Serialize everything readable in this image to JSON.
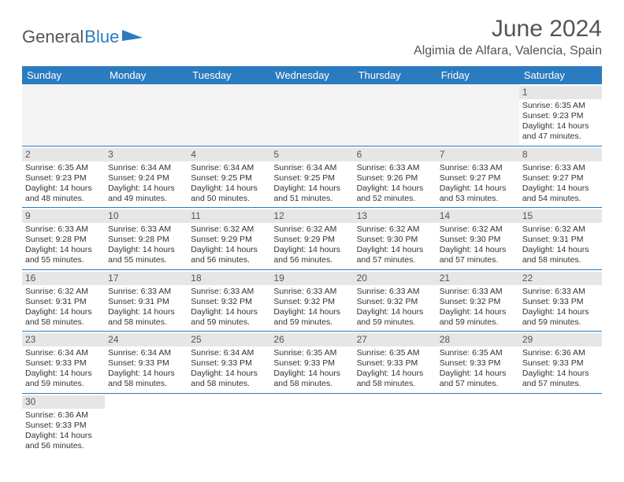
{
  "brand": {
    "part1": "General",
    "part2": "Blue"
  },
  "title": "June 2024",
  "location": "Algimia de Alfara, Valencia, Spain",
  "colors": {
    "header_bg": "#2b7bbf",
    "header_text": "#ffffff",
    "daynum_bg": "#e6e6e6",
    "row_border": "#2b7bbf",
    "text": "#333333",
    "title": "#555555"
  },
  "weekdays": [
    "Sunday",
    "Monday",
    "Tuesday",
    "Wednesday",
    "Thursday",
    "Friday",
    "Saturday"
  ],
  "weeks": [
    [
      null,
      null,
      null,
      null,
      null,
      null,
      {
        "n": "1",
        "sr": "Sunrise: 6:35 AM",
        "ss": "Sunset: 9:23 PM",
        "d1": "Daylight: 14 hours",
        "d2": "and 47 minutes."
      }
    ],
    [
      {
        "n": "2",
        "sr": "Sunrise: 6:35 AM",
        "ss": "Sunset: 9:23 PM",
        "d1": "Daylight: 14 hours",
        "d2": "and 48 minutes."
      },
      {
        "n": "3",
        "sr": "Sunrise: 6:34 AM",
        "ss": "Sunset: 9:24 PM",
        "d1": "Daylight: 14 hours",
        "d2": "and 49 minutes."
      },
      {
        "n": "4",
        "sr": "Sunrise: 6:34 AM",
        "ss": "Sunset: 9:25 PM",
        "d1": "Daylight: 14 hours",
        "d2": "and 50 minutes."
      },
      {
        "n": "5",
        "sr": "Sunrise: 6:34 AM",
        "ss": "Sunset: 9:25 PM",
        "d1": "Daylight: 14 hours",
        "d2": "and 51 minutes."
      },
      {
        "n": "6",
        "sr": "Sunrise: 6:33 AM",
        "ss": "Sunset: 9:26 PM",
        "d1": "Daylight: 14 hours",
        "d2": "and 52 minutes."
      },
      {
        "n": "7",
        "sr": "Sunrise: 6:33 AM",
        "ss": "Sunset: 9:27 PM",
        "d1": "Daylight: 14 hours",
        "d2": "and 53 minutes."
      },
      {
        "n": "8",
        "sr": "Sunrise: 6:33 AM",
        "ss": "Sunset: 9:27 PM",
        "d1": "Daylight: 14 hours",
        "d2": "and 54 minutes."
      }
    ],
    [
      {
        "n": "9",
        "sr": "Sunrise: 6:33 AM",
        "ss": "Sunset: 9:28 PM",
        "d1": "Daylight: 14 hours",
        "d2": "and 55 minutes."
      },
      {
        "n": "10",
        "sr": "Sunrise: 6:33 AM",
        "ss": "Sunset: 9:28 PM",
        "d1": "Daylight: 14 hours",
        "d2": "and 55 minutes."
      },
      {
        "n": "11",
        "sr": "Sunrise: 6:32 AM",
        "ss": "Sunset: 9:29 PM",
        "d1": "Daylight: 14 hours",
        "d2": "and 56 minutes."
      },
      {
        "n": "12",
        "sr": "Sunrise: 6:32 AM",
        "ss": "Sunset: 9:29 PM",
        "d1": "Daylight: 14 hours",
        "d2": "and 56 minutes."
      },
      {
        "n": "13",
        "sr": "Sunrise: 6:32 AM",
        "ss": "Sunset: 9:30 PM",
        "d1": "Daylight: 14 hours",
        "d2": "and 57 minutes."
      },
      {
        "n": "14",
        "sr": "Sunrise: 6:32 AM",
        "ss": "Sunset: 9:30 PM",
        "d1": "Daylight: 14 hours",
        "d2": "and 57 minutes."
      },
      {
        "n": "15",
        "sr": "Sunrise: 6:32 AM",
        "ss": "Sunset: 9:31 PM",
        "d1": "Daylight: 14 hours",
        "d2": "and 58 minutes."
      }
    ],
    [
      {
        "n": "16",
        "sr": "Sunrise: 6:32 AM",
        "ss": "Sunset: 9:31 PM",
        "d1": "Daylight: 14 hours",
        "d2": "and 58 minutes."
      },
      {
        "n": "17",
        "sr": "Sunrise: 6:33 AM",
        "ss": "Sunset: 9:31 PM",
        "d1": "Daylight: 14 hours",
        "d2": "and 58 minutes."
      },
      {
        "n": "18",
        "sr": "Sunrise: 6:33 AM",
        "ss": "Sunset: 9:32 PM",
        "d1": "Daylight: 14 hours",
        "d2": "and 59 minutes."
      },
      {
        "n": "19",
        "sr": "Sunrise: 6:33 AM",
        "ss": "Sunset: 9:32 PM",
        "d1": "Daylight: 14 hours",
        "d2": "and 59 minutes."
      },
      {
        "n": "20",
        "sr": "Sunrise: 6:33 AM",
        "ss": "Sunset: 9:32 PM",
        "d1": "Daylight: 14 hours",
        "d2": "and 59 minutes."
      },
      {
        "n": "21",
        "sr": "Sunrise: 6:33 AM",
        "ss": "Sunset: 9:32 PM",
        "d1": "Daylight: 14 hours",
        "d2": "and 59 minutes."
      },
      {
        "n": "22",
        "sr": "Sunrise: 6:33 AM",
        "ss": "Sunset: 9:33 PM",
        "d1": "Daylight: 14 hours",
        "d2": "and 59 minutes."
      }
    ],
    [
      {
        "n": "23",
        "sr": "Sunrise: 6:34 AM",
        "ss": "Sunset: 9:33 PM",
        "d1": "Daylight: 14 hours",
        "d2": "and 59 minutes."
      },
      {
        "n": "24",
        "sr": "Sunrise: 6:34 AM",
        "ss": "Sunset: 9:33 PM",
        "d1": "Daylight: 14 hours",
        "d2": "and 58 minutes."
      },
      {
        "n": "25",
        "sr": "Sunrise: 6:34 AM",
        "ss": "Sunset: 9:33 PM",
        "d1": "Daylight: 14 hours",
        "d2": "and 58 minutes."
      },
      {
        "n": "26",
        "sr": "Sunrise: 6:35 AM",
        "ss": "Sunset: 9:33 PM",
        "d1": "Daylight: 14 hours",
        "d2": "and 58 minutes."
      },
      {
        "n": "27",
        "sr": "Sunrise: 6:35 AM",
        "ss": "Sunset: 9:33 PM",
        "d1": "Daylight: 14 hours",
        "d2": "and 58 minutes."
      },
      {
        "n": "28",
        "sr": "Sunrise: 6:35 AM",
        "ss": "Sunset: 9:33 PM",
        "d1": "Daylight: 14 hours",
        "d2": "and 57 minutes."
      },
      {
        "n": "29",
        "sr": "Sunrise: 6:36 AM",
        "ss": "Sunset: 9:33 PM",
        "d1": "Daylight: 14 hours",
        "d2": "and 57 minutes."
      }
    ],
    [
      {
        "n": "30",
        "sr": "Sunrise: 6:36 AM",
        "ss": "Sunset: 9:33 PM",
        "d1": "Daylight: 14 hours",
        "d2": "and 56 minutes."
      },
      null,
      null,
      null,
      null,
      null,
      null
    ]
  ]
}
